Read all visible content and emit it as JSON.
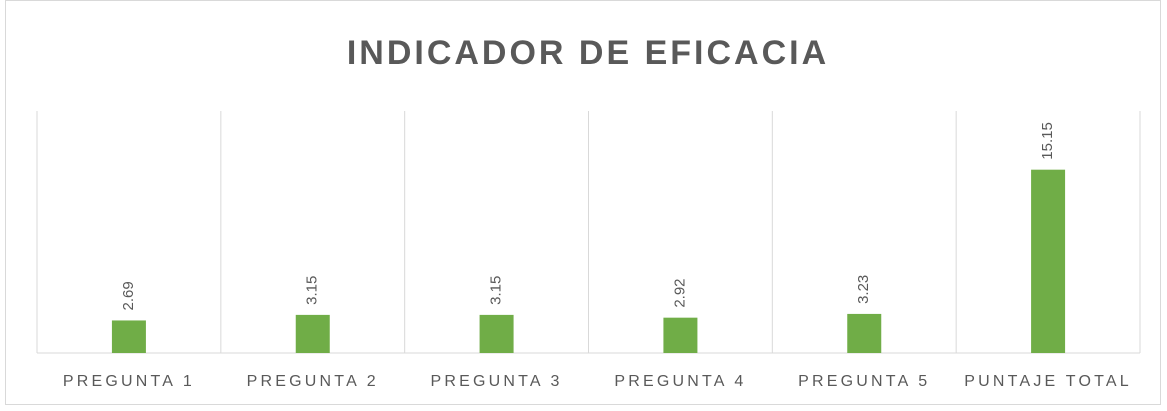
{
  "chart_data": {
    "type": "bar",
    "title": "INDICADOR DE EFICACIA",
    "categories": [
      "PREGUNTA 1",
      "PREGUNTA 2",
      "PREGUNTA 3",
      "PREGUNTA 4",
      "PREGUNTA 5",
      "PUNTAJE TOTAL"
    ],
    "values": [
      2.69,
      3.15,
      3.15,
      2.92,
      3.23,
      15.15
    ],
    "color": "#70ad47",
    "ylim": [
      0,
      20
    ],
    "grid": false
  }
}
